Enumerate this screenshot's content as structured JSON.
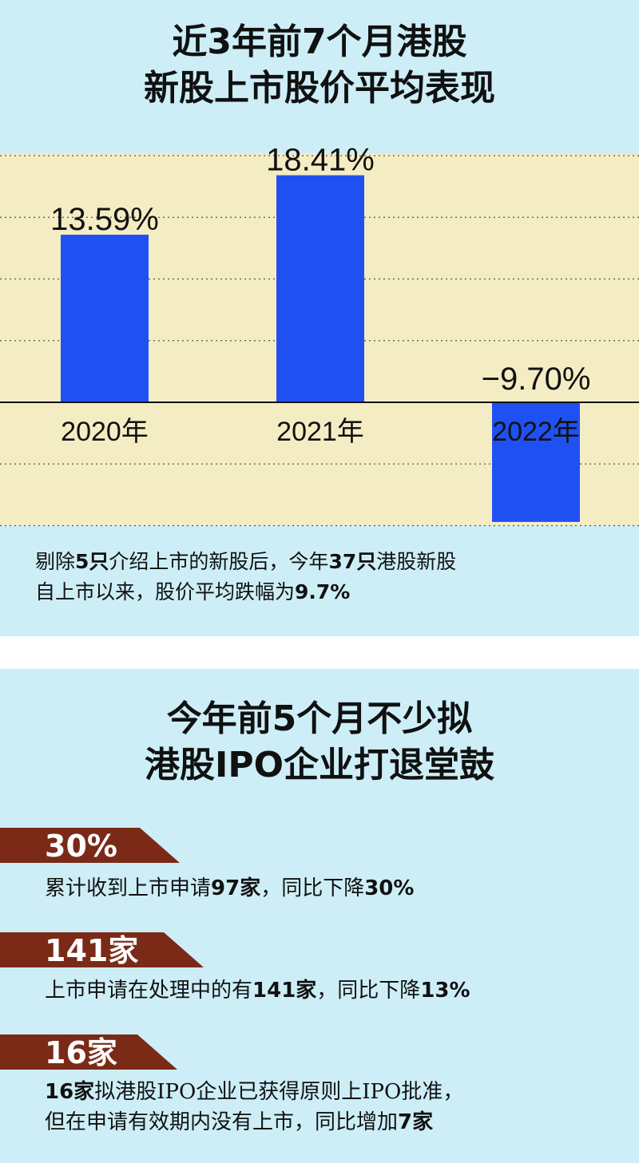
{
  "colors": {
    "panel_bg": "#cdeef7",
    "plot_bg": "#f4ecc3",
    "bar": "#1f51f2",
    "banner": "#7a2a17"
  },
  "chart_data": {
    "type": "bar",
    "title_lines": [
      "近3年前7个月港股",
      "新股上市股价平均表现"
    ],
    "categories": [
      "2020年",
      "2021年",
      "2022年"
    ],
    "values": [
      13.59,
      18.41,
      -9.7
    ],
    "value_labels": [
      "13.59%",
      "18.41%",
      "−9.70%"
    ],
    "xlabel": "",
    "ylabel": "",
    "ylim": [
      -10,
      20
    ],
    "grid": true
  },
  "note1": {
    "p1": "剔除",
    "b1": "5只",
    "p2": "介绍上市的新股后，今年",
    "b2": "37只",
    "p3": "港股新股",
    "p4": "自上市以来，股价平均跌幅为",
    "b3": "9.7%"
  },
  "section2": {
    "title_lines": [
      "今年前5个月不少拟",
      "港股IPO企业打退堂鼓"
    ],
    "stat1": {
      "value": "30%",
      "t1": "累计收到上市申请",
      "b1": "97家",
      "t2": "，同比下降",
      "b2": "30%"
    },
    "stat2": {
      "value": "141家",
      "t1": "上市申请在处理中的有",
      "b1": "141家",
      "t2": "，同比下降",
      "b2": "13%"
    },
    "stat3": {
      "value": "16家",
      "b1": "16家",
      "t1": "拟港股IPO企业已获得原则上IPO批准，",
      "t2": "但在申请有效期内没有上市，同比增加",
      "b2": "7家"
    }
  }
}
